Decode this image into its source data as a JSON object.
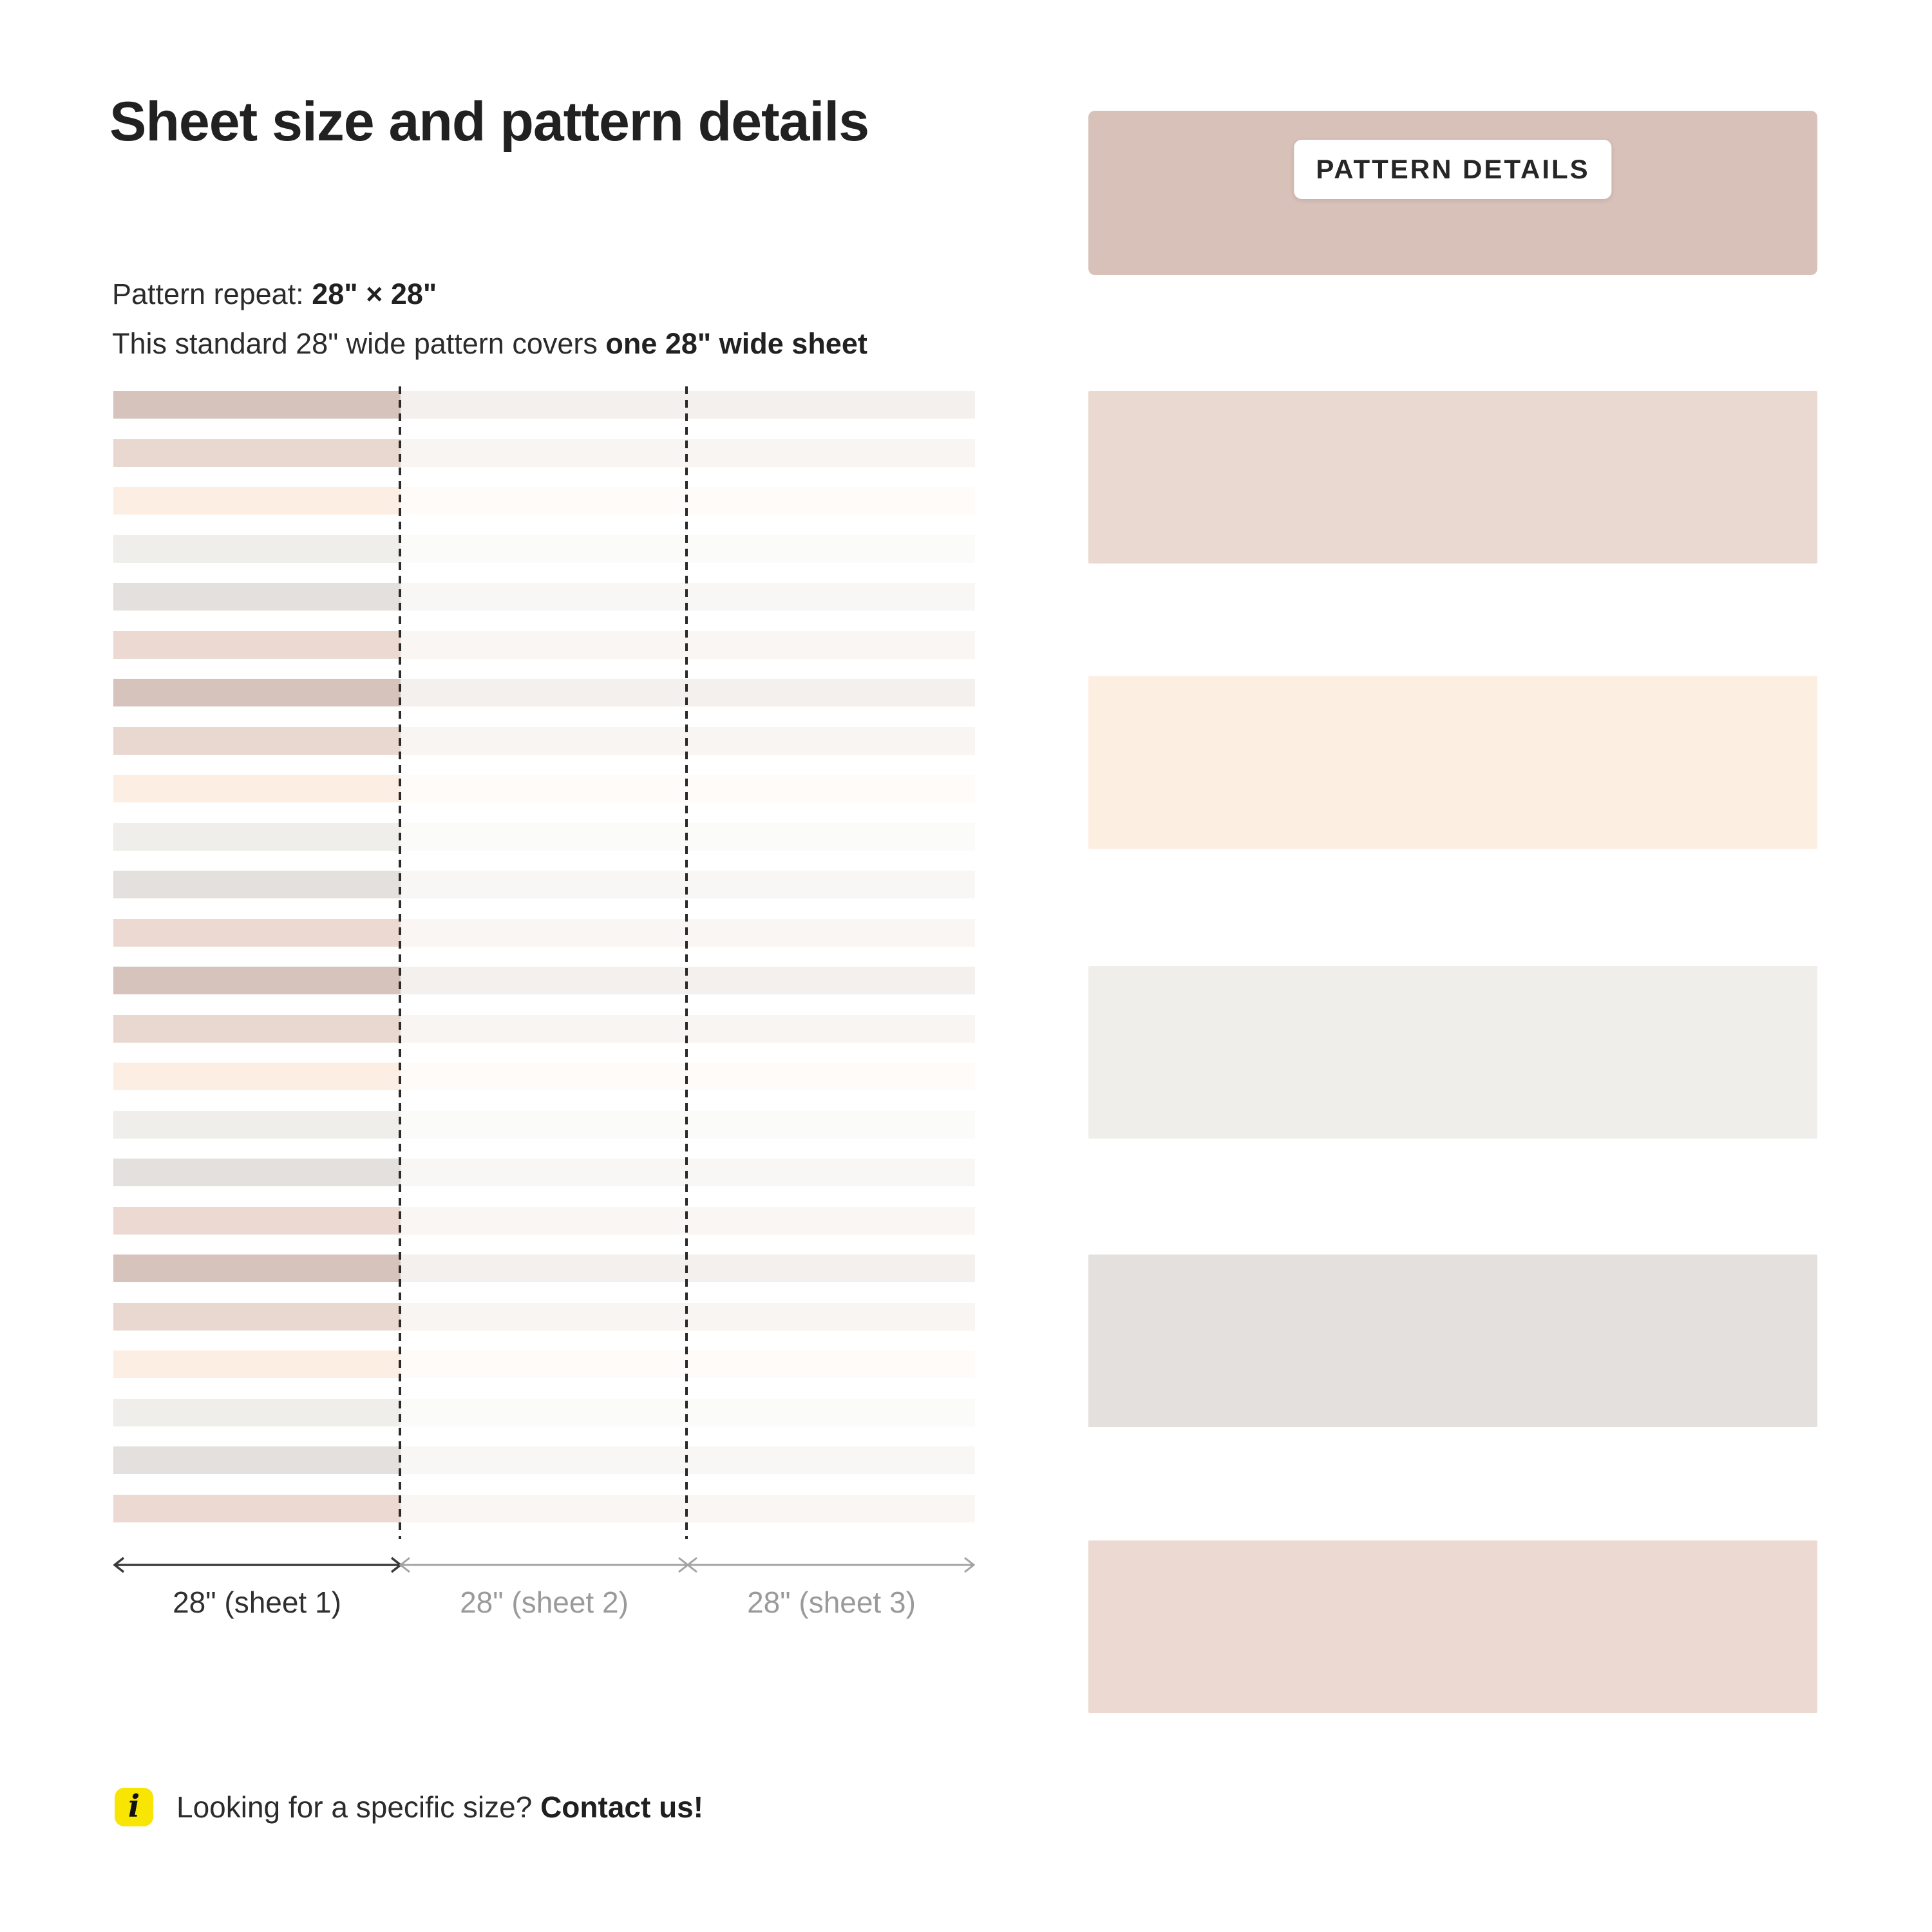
{
  "header": {
    "title": "Sheet size and pattern details"
  },
  "intro": {
    "repeat_label": "Pattern repeat: ",
    "repeat_value": "28\" × 28\"",
    "coverage_label": "This standard 28\" wide pattern covers ",
    "coverage_value": "one 28\" wide sheet"
  },
  "diagram": {
    "stripe_colors": [
      "#d5c3bc",
      "#e9d8d0",
      "#fdeee3",
      "#efeeea",
      "#e3e0dd",
      "#ecdad2"
    ],
    "stripe_cycles": 4,
    "faded_opacity": 0.25,
    "divider_color": "#2a2a2a",
    "arrow_dark_color": "#3a3a3a",
    "arrow_gray_color": "#a3a3a3",
    "sheet_labels": [
      "28\" (sheet 1)",
      "28\" (sheet 2)",
      "28\" (sheet 3)"
    ]
  },
  "panel": {
    "band_color": "#d7c1b9",
    "badge_label": "PATTERN DETAILS",
    "swatch_colors": [
      "#ead9d1",
      "#fdeee2",
      "#efeeea",
      "#e3e0dd",
      "#ecdad2"
    ],
    "swatch_tops": [
      607,
      1050,
      1500,
      1948,
      2392
    ]
  },
  "footer": {
    "icon_glyph": "i",
    "icon_bg": "#f8e503",
    "question": "Looking for a specific size? ",
    "cta": "Contact us!"
  }
}
